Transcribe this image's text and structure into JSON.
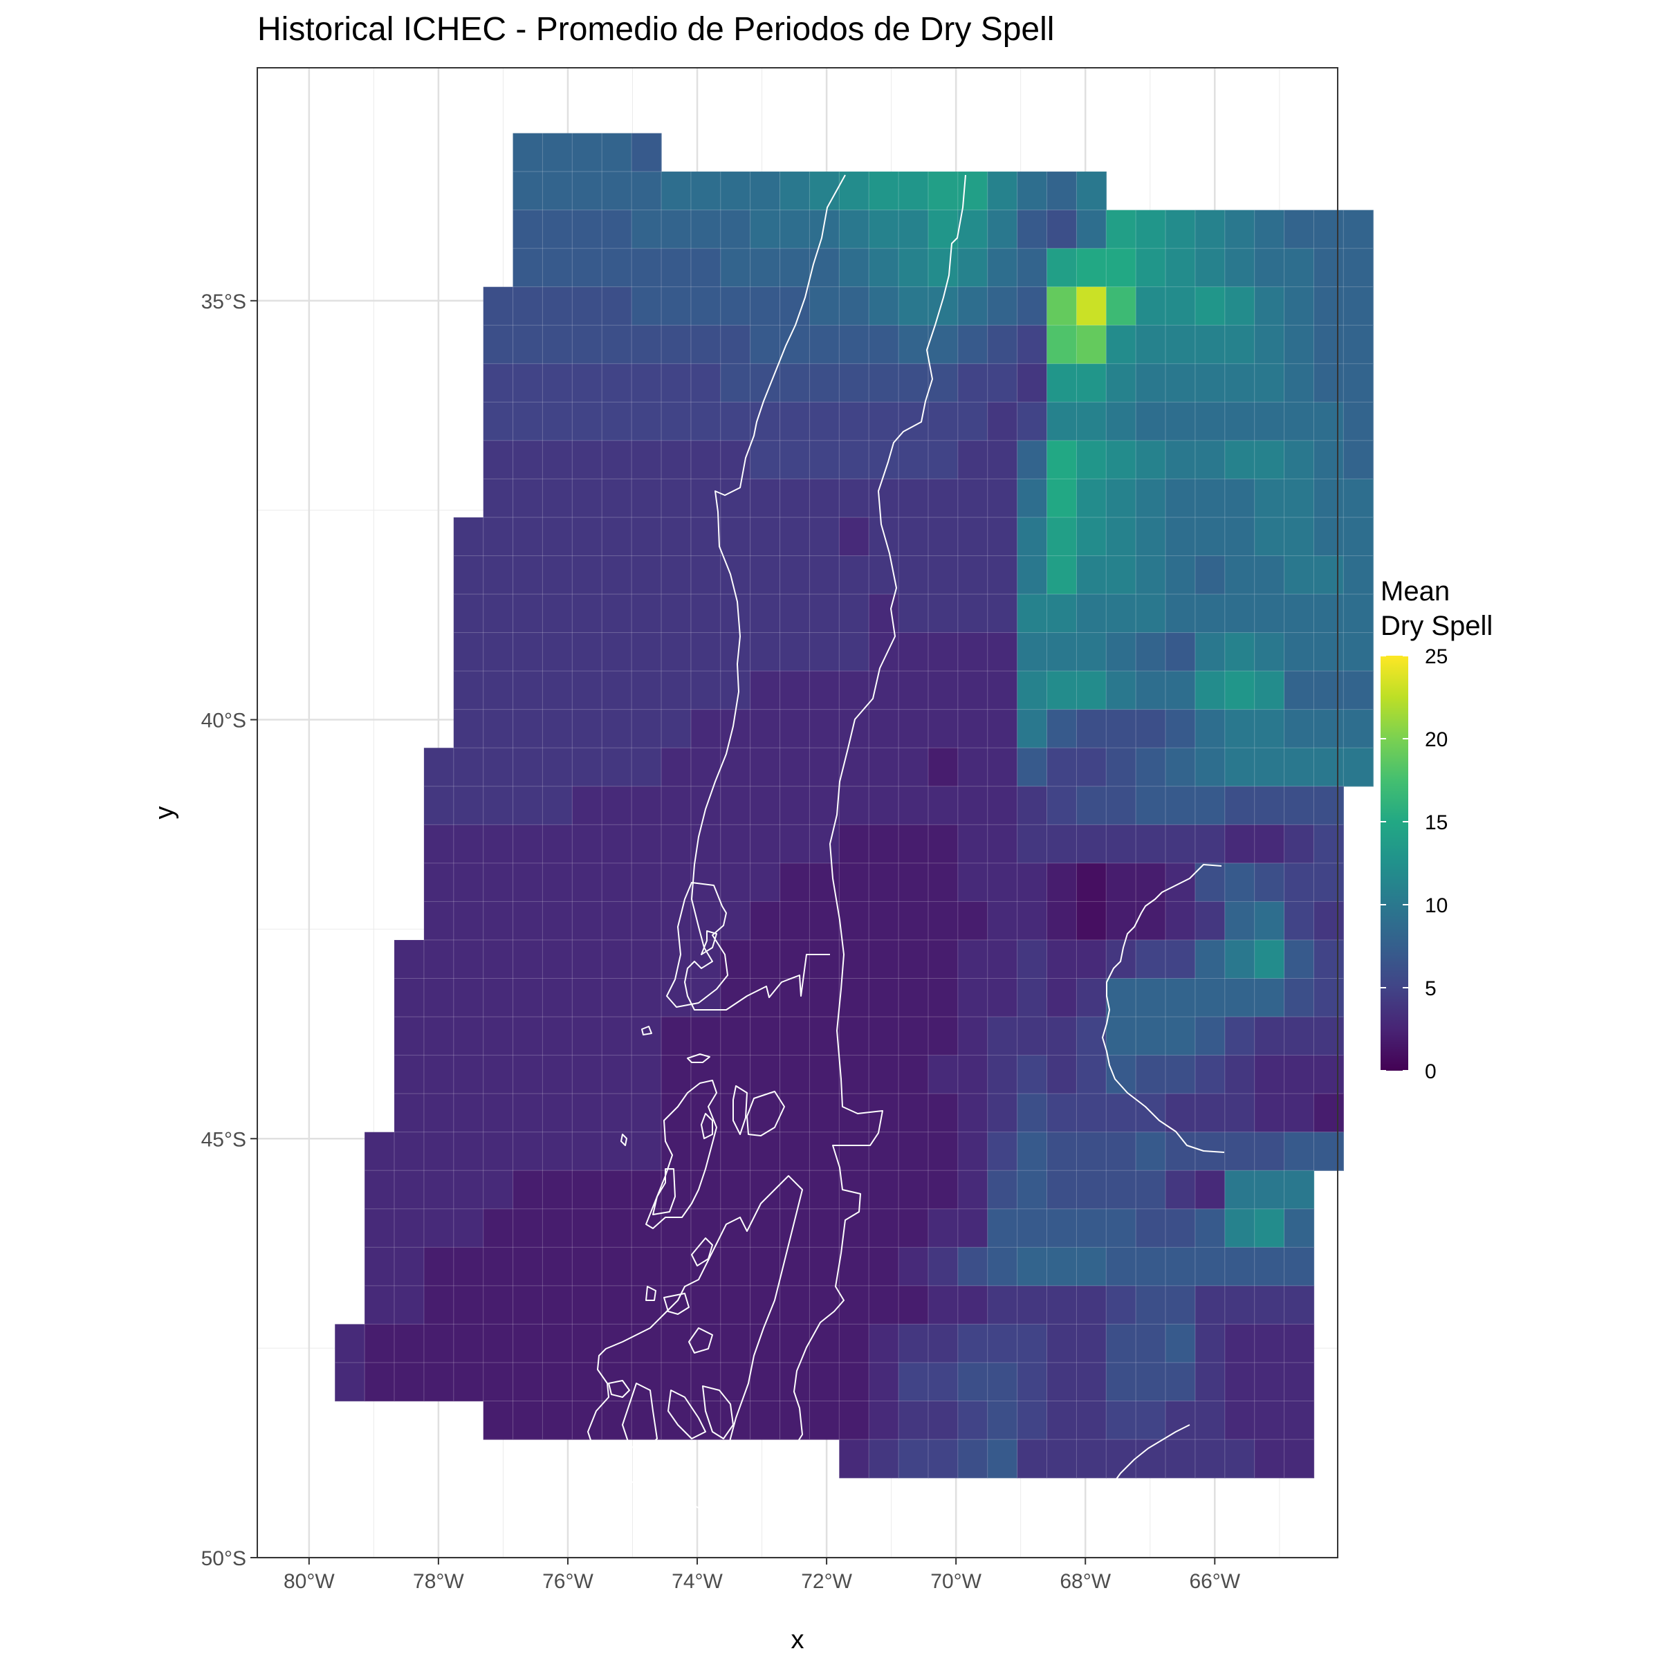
{
  "title": "Historical ICHEC - Promedio de Periodos de Dry Spell",
  "axes": {
    "xlabel": "x",
    "ylabel": "y",
    "x_ticks": [
      {
        "lon": -80,
        "label": "80°W"
      },
      {
        "lon": -78,
        "label": "78°W"
      },
      {
        "lon": -76,
        "label": "76°W"
      },
      {
        "lon": -74,
        "label": "74°W"
      },
      {
        "lon": -72,
        "label": "72°W"
      },
      {
        "lon": -70,
        "label": "70°W"
      },
      {
        "lon": -68,
        "label": "68°W"
      },
      {
        "lon": -66,
        "label": "66°W"
      }
    ],
    "y_ticks": [
      {
        "lat": -35,
        "label": "35°S"
      },
      {
        "lat": -40,
        "label": "40°S"
      },
      {
        "lat": -45,
        "label": "45°S"
      },
      {
        "lat": -50,
        "label": "50°S"
      }
    ],
    "xlim": [
      -80.8,
      -64.1
    ],
    "ylim": [
      -50.0,
      -32.22
    ]
  },
  "legend": {
    "title_line1": "Mean",
    "title_line2": "Dry Spell",
    "position": "right",
    "ticks": [
      {
        "value": 0,
        "label": "0"
      },
      {
        "value": 5,
        "label": "5"
      },
      {
        "value": 10,
        "label": "10"
      },
      {
        "value": 15,
        "label": "15"
      },
      {
        "value": 20,
        "label": "20"
      },
      {
        "value": 25,
        "label": "25"
      }
    ],
    "range": [
      0,
      25
    ],
    "palette": "viridis"
  },
  "chart_data": {
    "type": "heatmap",
    "title": "Historical ICHEC - Promedio de Periodos de Dry Spell",
    "xlabel": "x",
    "ylabel": "y",
    "xlim": [
      -80.8,
      -64.1
    ],
    "ylim": [
      -50.0,
      -32.22
    ],
    "grid": true,
    "colorbar": {
      "title": "Mean Dry Spell",
      "range": [
        0,
        25
      ]
    },
    "cell_size_deg": [
      0.4585,
      0.4585
    ],
    "lon_start": -79.6,
    "lat_start": -33.0,
    "grid_note": "rows from north (lat_start) to south, columns from west (lon_start) to east; null = no data",
    "rows": [
      [
        null,
        null,
        null,
        null,
        null,
        null,
        8,
        8,
        8,
        8,
        7,
        null,
        null,
        null,
        null,
        null,
        null,
        null,
        null,
        null,
        null,
        null,
        null,
        null,
        null,
        null,
        null,
        null,
        null,
        null,
        null,
        null,
        null
      ],
      [
        null,
        null,
        null,
        null,
        null,
        null,
        8,
        8,
        8,
        8,
        8,
        9,
        9,
        9,
        9,
        10,
        11,
        12,
        13,
        13,
        14,
        14,
        11,
        9,
        8,
        10,
        null,
        null,
        null,
        null,
        null,
        null,
        null
      ],
      [
        null,
        null,
        null,
        null,
        null,
        null,
        7,
        7,
        7,
        7,
        8,
        8,
        8,
        8,
        9,
        9,
        9,
        10,
        11,
        11,
        13,
        12,
        10,
        7,
        6,
        9,
        14,
        13,
        12,
        11,
        10,
        9,
        8,
        8,
        8
      ],
      [
        null,
        null,
        null,
        null,
        null,
        null,
        7,
        7,
        7,
        7,
        7,
        7,
        7,
        8,
        8,
        8,
        8,
        9,
        10,
        11,
        12,
        11,
        9,
        8,
        14,
        15,
        15,
        13,
        12,
        11,
        10,
        9,
        9,
        8,
        8
      ],
      [
        null,
        null,
        null,
        null,
        null,
        6,
        6,
        6,
        6,
        6,
        7,
        7,
        7,
        7,
        7,
        7,
        8,
        8,
        9,
        10,
        10,
        9,
        8,
        7,
        19,
        23,
        17,
        12,
        12,
        13,
        12,
        10,
        9,
        8,
        8
      ],
      [
        null,
        null,
        null,
        null,
        null,
        6,
        6,
        6,
        6,
        6,
        6,
        6,
        6,
        6,
        7,
        7,
        7,
        7,
        7,
        8,
        8,
        7,
        6,
        5,
        18,
        19,
        12,
        11,
        11,
        11,
        11,
        10,
        9,
        8,
        8
      ],
      [
        null,
        null,
        null,
        null,
        null,
        5,
        5,
        5,
        5,
        5,
        5,
        5,
        5,
        6,
        6,
        6,
        6,
        6,
        6,
        6,
        6,
        5,
        5,
        4,
        13,
        13,
        11,
        10,
        10,
        10,
        10,
        10,
        9,
        8,
        8
      ],
      [
        null,
        null,
        null,
        null,
        null,
        5,
        5,
        5,
        5,
        5,
        5,
        5,
        5,
        5,
        5,
        5,
        5,
        5,
        5,
        5,
        5,
        5,
        4,
        5,
        11,
        11,
        10,
        9,
        9,
        9,
        9,
        9,
        9,
        9,
        8
      ],
      [
        null,
        null,
        null,
        null,
        null,
        4,
        4,
        4,
        4,
        4,
        4,
        4,
        4,
        4,
        5,
        5,
        5,
        5,
        5,
        5,
        5,
        4,
        4,
        8,
        15,
        13,
        12,
        11,
        10,
        10,
        11,
        11,
        10,
        9,
        8
      ],
      [
        null,
        null,
        null,
        null,
        null,
        4,
        4,
        4,
        4,
        4,
        4,
        4,
        4,
        4,
        4,
        4,
        4,
        4,
        4,
        4,
        4,
        4,
        4,
        9,
        15,
        12,
        11,
        10,
        9,
        9,
        9,
        10,
        10,
        9,
        9
      ],
      [
        null,
        null,
        null,
        null,
        4,
        4,
        4,
        4,
        4,
        4,
        4,
        4,
        4,
        4,
        4,
        4,
        4,
        3,
        4,
        4,
        4,
        4,
        4,
        10,
        14,
        12,
        11,
        10,
        9,
        9,
        9,
        10,
        10,
        9,
        9
      ],
      [
        null,
        null,
        null,
        null,
        4,
        4,
        4,
        4,
        4,
        4,
        4,
        4,
        4,
        4,
        4,
        4,
        4,
        4,
        4,
        4,
        4,
        4,
        4,
        10,
        14,
        11,
        11,
        10,
        9,
        8,
        9,
        9,
        10,
        10,
        9
      ],
      [
        null,
        null,
        null,
        null,
        4,
        4,
        4,
        4,
        4,
        4,
        4,
        4,
        4,
        4,
        4,
        4,
        4,
        4,
        3,
        4,
        4,
        4,
        4,
        11,
        11,
        10,
        10,
        10,
        9,
        9,
        9,
        9,
        9,
        9,
        9
      ],
      [
        null,
        null,
        null,
        null,
        4,
        4,
        4,
        4,
        4,
        4,
        4,
        4,
        4,
        4,
        4,
        4,
        4,
        4,
        3,
        3,
        3,
        3,
        3,
        10,
        10,
        10,
        9,
        8,
        7,
        10,
        11,
        10,
        9,
        9,
        9
      ],
      [
        null,
        null,
        null,
        null,
        4,
        4,
        4,
        4,
        4,
        4,
        4,
        4,
        4,
        4,
        3,
        3,
        3,
        3,
        3,
        3,
        3,
        3,
        3,
        11,
        12,
        12,
        10,
        9,
        9,
        12,
        13,
        12,
        8,
        8,
        8
      ],
      [
        null,
        null,
        null,
        null,
        4,
        4,
        4,
        4,
        4,
        4,
        4,
        4,
        3,
        3,
        3,
        3,
        3,
        3,
        3,
        3,
        3,
        3,
        3,
        10,
        7,
        6,
        6,
        6,
        7,
        9,
        10,
        10,
        9,
        9,
        9
      ],
      [
        null,
        null,
        null,
        4,
        4,
        4,
        4,
        4,
        4,
        4,
        4,
        3,
        3,
        3,
        3,
        3,
        3,
        3,
        3,
        3,
        2,
        3,
        3,
        7,
        5,
        5,
        6,
        7,
        8,
        9,
        10,
        10,
        10,
        10,
        10
      ],
      [
        null,
        null,
        null,
        4,
        4,
        4,
        4,
        4,
        3,
        3,
        3,
        3,
        3,
        3,
        3,
        3,
        3,
        3,
        3,
        3,
        3,
        3,
        3,
        4,
        5,
        6,
        6,
        7,
        7,
        7,
        6,
        6,
        6,
        6,
        null
      ],
      [
        null,
        null,
        null,
        3,
        3,
        3,
        3,
        3,
        3,
        3,
        3,
        3,
        3,
        3,
        3,
        3,
        3,
        2,
        2,
        2,
        2,
        3,
        3,
        4,
        4,
        4,
        4,
        4,
        4,
        4,
        3,
        3,
        4,
        5,
        null
      ],
      [
        null,
        null,
        null,
        3,
        3,
        3,
        3,
        3,
        3,
        3,
        3,
        3,
        3,
        3,
        3,
        2,
        2,
        2,
        2,
        2,
        2,
        3,
        3,
        3,
        2,
        1,
        2,
        2,
        3,
        6,
        7,
        6,
        5,
        5,
        null
      ],
      [
        null,
        null,
        null,
        3,
        3,
        3,
        3,
        3,
        3,
        3,
        3,
        3,
        3,
        3,
        2,
        2,
        2,
        2,
        2,
        2,
        2,
        2,
        3,
        3,
        2,
        1,
        2,
        2,
        3,
        4,
        8,
        9,
        5,
        4,
        null
      ],
      [
        null,
        null,
        3,
        3,
        3,
        3,
        3,
        3,
        3,
        3,
        3,
        3,
        3,
        2,
        2,
        2,
        2,
        2,
        2,
        2,
        2,
        3,
        3,
        4,
        3,
        3,
        4,
        5,
        5,
        8,
        10,
        12,
        7,
        5,
        null
      ],
      [
        null,
        null,
        3,
        3,
        3,
        3,
        3,
        3,
        3,
        3,
        3,
        3,
        3,
        2,
        2,
        2,
        2,
        2,
        2,
        2,
        2,
        3,
        3,
        4,
        3,
        4,
        8,
        8,
        8,
        8,
        8,
        8,
        6,
        5,
        null
      ],
      [
        null,
        null,
        3,
        3,
        3,
        3,
        3,
        3,
        3,
        3,
        3,
        2,
        2,
        2,
        2,
        2,
        2,
        2,
        2,
        2,
        2,
        3,
        4,
        4,
        4,
        5,
        8,
        8,
        8,
        7,
        5,
        4,
        4,
        4,
        null
      ],
      [
        null,
        null,
        3,
        3,
        3,
        3,
        3,
        3,
        3,
        3,
        3,
        2,
        2,
        2,
        2,
        2,
        2,
        2,
        2,
        2,
        3,
        3,
        4,
        5,
        4,
        5,
        7,
        6,
        6,
        5,
        4,
        3,
        3,
        3,
        null
      ],
      [
        null,
        null,
        3,
        3,
        3,
        3,
        3,
        3,
        3,
        3,
        3,
        2,
        2,
        2,
        2,
        2,
        2,
        2,
        2,
        2,
        2,
        3,
        4,
        6,
        5,
        5,
        5,
        5,
        4,
        4,
        4,
        3,
        3,
        2,
        null
      ],
      [
        null,
        3,
        3,
        3,
        3,
        3,
        3,
        3,
        3,
        3,
        3,
        2,
        2,
        2,
        2,
        2,
        2,
        2,
        2,
        2,
        2,
        3,
        5,
        7,
        6,
        6,
        6,
        7,
        6,
        6,
        6,
        6,
        7,
        7,
        null
      ],
      [
        null,
        3,
        3,
        3,
        3,
        3,
        2,
        2,
        2,
        2,
        2,
        2,
        2,
        2,
        2,
        2,
        2,
        2,
        2,
        2,
        2,
        3,
        6,
        7,
        6,
        6,
        6,
        6,
        4,
        3,
        10,
        10,
        10,
        null,
        null
      ],
      [
        null,
        3,
        3,
        3,
        3,
        2,
        2,
        2,
        2,
        2,
        2,
        2,
        2,
        2,
        2,
        2,
        2,
        2,
        2,
        2,
        3,
        3,
        7,
        7,
        7,
        7,
        7,
        6,
        6,
        7,
        11,
        12,
        8,
        null,
        null
      ],
      [
        null,
        3,
        3,
        2,
        2,
        2,
        2,
        2,
        2,
        2,
        2,
        2,
        2,
        2,
        2,
        2,
        2,
        2,
        2,
        3,
        4,
        6,
        7,
        8,
        8,
        8,
        7,
        7,
        7,
        7,
        7,
        7,
        7,
        null,
        null
      ],
      [
        null,
        3,
        3,
        2,
        2,
        2,
        2,
        2,
        2,
        2,
        2,
        2,
        2,
        2,
        2,
        2,
        2,
        2,
        2,
        2,
        3,
        3,
        4,
        4,
        4,
        4,
        5,
        6,
        6,
        4,
        4,
        4,
        4,
        null,
        null
      ],
      [
        3,
        2,
        2,
        2,
        2,
        2,
        2,
        2,
        2,
        2,
        2,
        2,
        2,
        2,
        2,
        2,
        2,
        2,
        3,
        4,
        4,
        5,
        5,
        5,
        4,
        4,
        6,
        6,
        7,
        4,
        3,
        3,
        3,
        null,
        null
      ],
      [
        3,
        2,
        2,
        2,
        2,
        2,
        2,
        2,
        2,
        2,
        2,
        2,
        2,
        2,
        2,
        2,
        2,
        2,
        3,
        5,
        5,
        6,
        6,
        5,
        4,
        4,
        6,
        6,
        6,
        4,
        3,
        3,
        3,
        null,
        null
      ],
      [
        null,
        null,
        null,
        null,
        null,
        2,
        2,
        2,
        2,
        2,
        2,
        2,
        2,
        2,
        2,
        2,
        2,
        2,
        3,
        4,
        4,
        5,
        6,
        5,
        4,
        4,
        5,
        5,
        4,
        4,
        3,
        3,
        3,
        null,
        null
      ],
      [
        null,
        null,
        null,
        null,
        null,
        null,
        null,
        null,
        null,
        null,
        null,
        null,
        null,
        null,
        null,
        null,
        null,
        3,
        4,
        5,
        5,
        6,
        7,
        4,
        4,
        4,
        4,
        4,
        4,
        4,
        4,
        3,
        3,
        null,
        null
      ]
    ],
    "rectangles": [
      {
        "lon0": -77.3,
        "lon1": -75.0,
        "lat0": -34.06,
        "lat1": -33.15,
        "value": 8
      },
      {
        "lon0": -77.3,
        "lon1": -69.1,
        "lat0": -33.06,
        "lat1": -34.06,
        "value": 8
      },
      {
        "lon0": -77.3,
        "lon1": -65.4,
        "lat0": -33.06,
        "lat1": -34.06,
        "value": null
      }
    ]
  }
}
